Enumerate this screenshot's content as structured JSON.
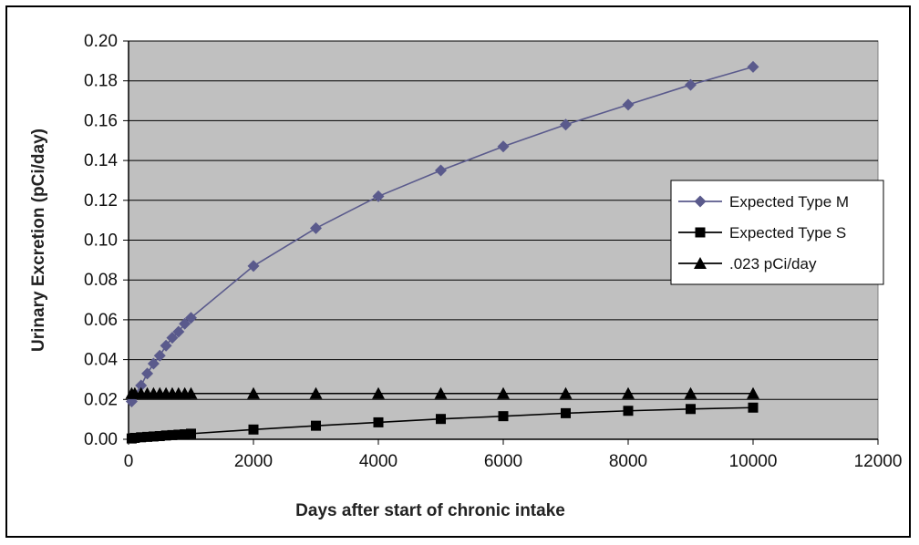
{
  "chart_data": {
    "type": "scatter",
    "title": "",
    "xlabel": "Days after start of chronic intake",
    "ylabel": "Urinary Excretion (pCi/day)",
    "xlim": [
      0,
      12000
    ],
    "ylim": [
      0,
      0.2
    ],
    "x_ticks": [
      "0",
      "2000",
      "4000",
      "6000",
      "8000",
      "10000",
      "12000"
    ],
    "y_ticks": [
      "0.00",
      "0.02",
      "0.04",
      "0.06",
      "0.08",
      "0.10",
      "0.12",
      "0.14",
      "0.16",
      "0.18",
      "0.20"
    ],
    "grid": "horizontal",
    "plot_background": "#c0c0c0",
    "legend_position": "right",
    "series": [
      {
        "name": "Expected Type M",
        "color": "#5a5a8c",
        "marker": "diamond",
        "x": [
          50,
          100,
          200,
          300,
          400,
          500,
          600,
          700,
          800,
          900,
          1000,
          2000,
          3000,
          4000,
          5000,
          6000,
          7000,
          8000,
          9000,
          10000
        ],
        "y": [
          0.019,
          0.022,
          0.027,
          0.033,
          0.038,
          0.042,
          0.047,
          0.051,
          0.054,
          0.058,
          0.061,
          0.087,
          0.106,
          0.122,
          0.135,
          0.147,
          0.158,
          0.168,
          0.178,
          0.187
        ]
      },
      {
        "name": "Expected Type S",
        "color": "#000000",
        "marker": "square",
        "x": [
          50,
          100,
          200,
          300,
          400,
          500,
          600,
          700,
          800,
          900,
          1000,
          2000,
          3000,
          4000,
          5000,
          6000,
          7000,
          8000,
          9000,
          10000
        ],
        "y": [
          0.0004,
          0.0007,
          0.001,
          0.0012,
          0.0014,
          0.0016,
          0.0019,
          0.0021,
          0.0023,
          0.0025,
          0.0028,
          0.0049,
          0.0068,
          0.0085,
          0.0102,
          0.0116,
          0.0131,
          0.0143,
          0.0152,
          0.0159
        ]
      },
      {
        "name": ".023 pCi/day",
        "color": "#000000",
        "marker": "triangle",
        "x": [
          50,
          100,
          200,
          300,
          400,
          500,
          600,
          700,
          800,
          900,
          1000,
          2000,
          3000,
          4000,
          5000,
          6000,
          7000,
          8000,
          9000,
          10000
        ],
        "y": [
          0.023,
          0.023,
          0.023,
          0.023,
          0.023,
          0.023,
          0.023,
          0.023,
          0.023,
          0.023,
          0.023,
          0.023,
          0.023,
          0.023,
          0.023,
          0.023,
          0.023,
          0.023,
          0.023,
          0.023
        ]
      }
    ]
  }
}
